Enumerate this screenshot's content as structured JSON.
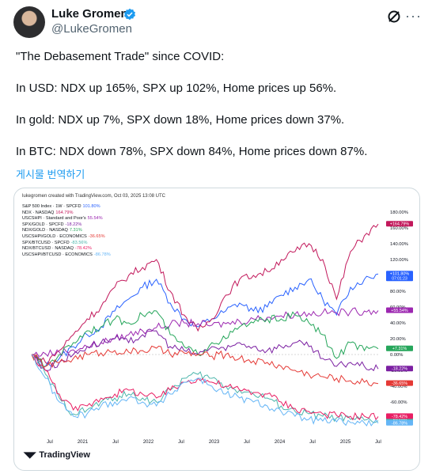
{
  "tweet": {
    "author_name": "Luke Gromen",
    "author_handle": "@LukeGromen",
    "text": "\"The Debasement Trade\" since COVID:\n\nIn USD: NDX up 165%, SPX up 102%, Home prices up 56%.\n\nIn gold: NDX up 7%, SPX down 18%, Home prices down 37%.\n\nIn BTC: NDX down 78%, SPX down 84%, Home prices down 87%.",
    "translate_label": "게시물 번역하기",
    "icons": [
      "verified-badge-icon",
      "grok-icon",
      "more-icon"
    ]
  },
  "media": {
    "header": "lukegromen created with TradingView.com, Oct 03, 2025 13:08 UTC",
    "logo_text": "TradingView"
  },
  "chart_data": {
    "type": "line",
    "x_ticks": [
      "Jul",
      "2021",
      "Jul",
      "2022",
      "Jul",
      "2023",
      "Jul",
      "2024",
      "Jul",
      "2025",
      "Jul"
    ],
    "y_ticks": [
      "180.00%",
      "160.00%",
      "140.00%",
      "120.00%",
      "100.00%",
      "80.00%",
      "60.00%",
      "40.00%",
      "20.00%",
      "0.00%",
      "-20.00%",
      "-40.00%",
      "-60.00%",
      "-80.00%"
    ],
    "ylim": [
      -95,
      185
    ],
    "series": [
      {
        "name": "S&P 500 Index · 1W · SPCFD",
        "value_label": "101.80%",
        "last_label": "+101.80%",
        "sub_label": "07:01:23",
        "color": "#2962ff",
        "values": [
          0,
          -15,
          -5,
          10,
          25,
          35,
          55,
          70,
          85,
          95,
          65,
          45,
          35,
          45,
          55,
          65,
          55,
          60,
          75,
          85,
          95,
          70,
          50,
          85,
          95,
          101.8
        ]
      },
      {
        "name": "NDX · NASDAQ",
        "value_label": "164.79%",
        "last_label": "+164.79%",
        "color": "#c2185b",
        "values": [
          0,
          -10,
          5,
          25,
          45,
          60,
          85,
          100,
          110,
          120,
          80,
          50,
          30,
          45,
          75,
          95,
          100,
          105,
          120,
          130,
          140,
          120,
          70,
          130,
          150,
          164.79
        ]
      },
      {
        "name": "USCSHPI · Standard and Poor's",
        "value_label": "55.54%",
        "last_label": "+55.54%",
        "color": "#9c27b0",
        "values": [
          0,
          1,
          3,
          6,
          10,
          15,
          20,
          25,
          30,
          34,
          38,
          40,
          39,
          37,
          39,
          42,
          45,
          47,
          49,
          51,
          52,
          53,
          53,
          54,
          55,
          55.54
        ]
      },
      {
        "name": "SPX/GOLD · SPCFD",
        "value_label": "-18.22%",
        "last_label": "-18.22%",
        "color": "#7b1fa2",
        "values": [
          0,
          -20,
          -10,
          0,
          10,
          15,
          20,
          15,
          25,
          30,
          10,
          5,
          0,
          10,
          5,
          15,
          10,
          5,
          10,
          15,
          10,
          -5,
          -15,
          -10,
          -15,
          -18.22
        ]
      },
      {
        "name": "NDX/GOLD · NASDAQ",
        "value_label": "7.31%",
        "last_label": "+7.31%",
        "color": "#26a65b",
        "values": [
          0,
          -15,
          0,
          15,
          30,
          35,
          45,
          40,
          50,
          55,
          25,
          10,
          0,
          15,
          20,
          35,
          40,
          45,
          45,
          50,
          40,
          25,
          -5,
          15,
          5,
          7.31
        ]
      },
      {
        "name": "USCSHPI/GOLD · ECONOMICS",
        "value_label": "-36.65%",
        "last_label": "-36.65%",
        "color": "#e53935",
        "values": [
          0,
          -15,
          -10,
          -5,
          0,
          2,
          5,
          3,
          5,
          8,
          0,
          2,
          0,
          -2,
          0,
          -5,
          -8,
          -10,
          -15,
          -20,
          -25,
          -28,
          -30,
          -33,
          -35,
          -36.65
        ]
      },
      {
        "name": "SPX/BTCUSD · SPCFD",
        "value_label": "-83.56%",
        "last_label": "-83.56%",
        "color": "#4db6ac",
        "values": [
          0,
          -25,
          -55,
          -75,
          -70,
          -60,
          -55,
          -50,
          -55,
          -60,
          -45,
          -30,
          -25,
          -30,
          -40,
          -45,
          -50,
          -55,
          -65,
          -72,
          -75,
          -78,
          -80,
          -82,
          -83,
          -83.56
        ]
      },
      {
        "name": "NDX/BTCUSD · NASDAQ",
        "value_label": "-78.42%",
        "last_label": "-78.42%",
        "color": "#e91e63",
        "values": [
          0,
          -20,
          -50,
          -70,
          -65,
          -55,
          -50,
          -45,
          -50,
          -55,
          -45,
          -35,
          -30,
          -35,
          -40,
          -45,
          -48,
          -50,
          -60,
          -68,
          -72,
          -75,
          -77,
          -78,
          -78,
          -78.42
        ]
      },
      {
        "name": "USCSHPI/BTCUSD · ECONOMICS",
        "value_label": "-86.78%",
        "last_label": "-86.78%",
        "color": "#64b5f6",
        "values": [
          0,
          -30,
          -60,
          -78,
          -75,
          -65,
          -60,
          -55,
          -60,
          -65,
          -50,
          -35,
          -30,
          -40,
          -50,
          -55,
          -60,
          -65,
          -72,
          -78,
          -82,
          -84,
          -85,
          -86,
          -86.5,
          -86.78
        ]
      }
    ]
  }
}
